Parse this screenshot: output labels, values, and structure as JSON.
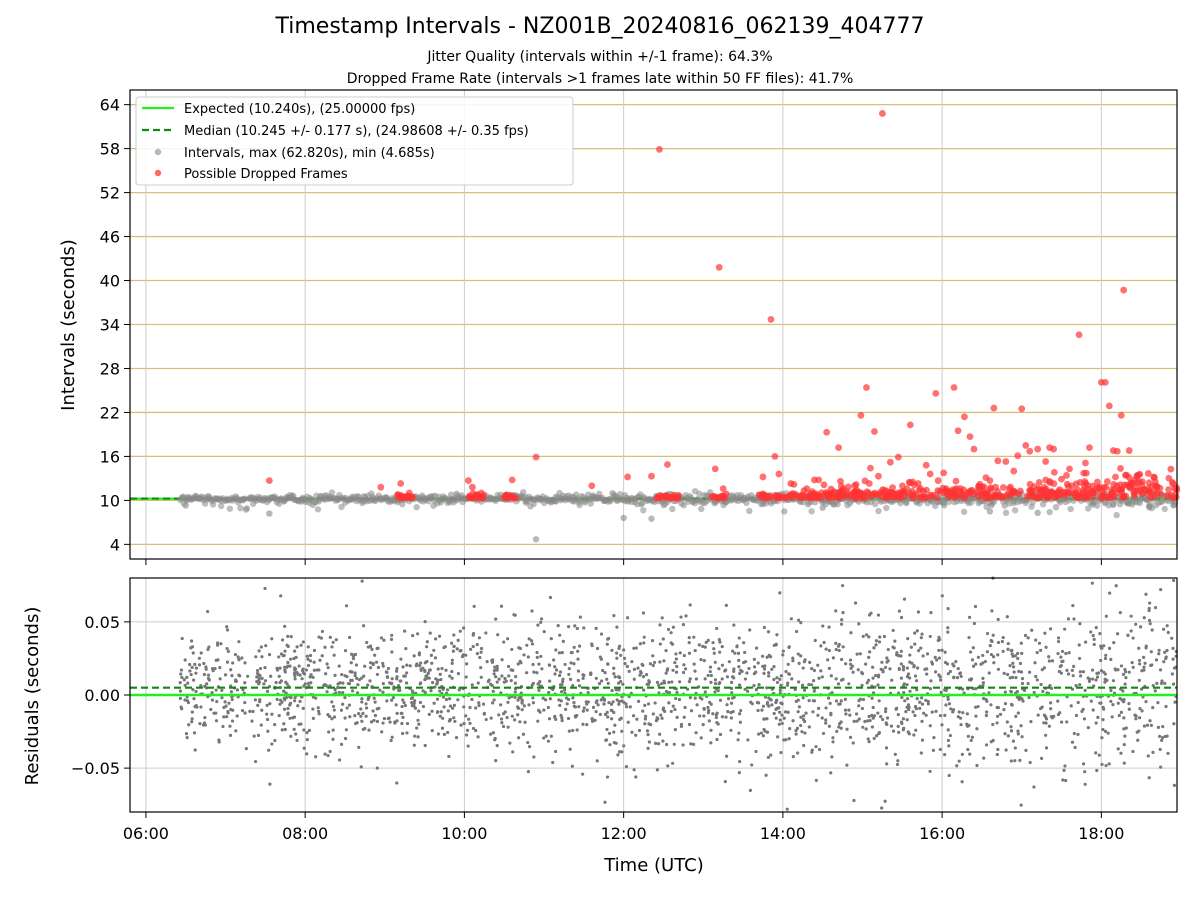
{
  "title": "Timestamp Intervals - NZ001B_20240816_062139_404777",
  "subtitle_lines": [
    "Jitter Quality (intervals within +/-1 frame): 64.3%",
    "Dropped Frame Rate (intervals >1 frames late within 50 FF files): 41.7%"
  ],
  "colors": {
    "expected": "#22ee22",
    "median": "#118811",
    "intervals": "#888888",
    "dropped": "#ff3333",
    "grid_h_top": "#d8c07a",
    "grid": "#cccccc",
    "residuals": "#777777"
  },
  "chart_data": [
    {
      "type": "scatter",
      "panel": "top",
      "xlabel": "",
      "ylabel": "Intervals (seconds)",
      "xlim_hours": [
        5.8,
        18.95
      ],
      "ylim": [
        2,
        66
      ],
      "yticks": [
        4,
        10,
        16,
        22,
        28,
        34,
        40,
        46,
        52,
        58,
        64
      ],
      "grid": "horizontal lines at y ticks, vertical lines at x ticks",
      "legend_position": "upper-left",
      "legend": [
        "Expected (10.240s), (25.00000 fps)",
        "Median (10.245 +/- 0.177 s), (24.98608 +/- 0.35 fps)",
        "Intervals, max (62.820s), min (4.685s)",
        "Possible Dropped Frames"
      ],
      "series": [
        {
          "name": "Expected (10.240s), (25.00000 fps)",
          "kind": "hline",
          "y": 10.24
        },
        {
          "name": "Median (10.245 +/- 0.177 s), (24.98608 +/- 0.35 fps)",
          "kind": "hline-dashed",
          "y": 10.245
        },
        {
          "name": "Intervals, max (62.820s), min (4.685s)",
          "kind": "scatter",
          "x_range_hours": [
            6.43,
            18.95
          ],
          "count": 900,
          "typical_y": 10.24,
          "spread_near_start": 0.35,
          "spread_near_end": 0.8,
          "notable_points": [
            [
              7.55,
              8.2
            ],
            [
              10.9,
              4.69
            ],
            [
              12.0,
              7.6
            ],
            [
              12.35,
              7.5
            ],
            [
              9.9,
              10.9
            ],
            [
              14.5,
              9.0
            ],
            [
              16.6,
              8.5
            ],
            [
              17.2,
              8.3
            ],
            [
              18.6,
              9.2
            ],
            [
              6.5,
              9.3
            ]
          ]
        },
        {
          "name": "Possible Dropped Frames",
          "kind": "scatter",
          "clusters_hours": [
            [
              9.15,
              9.35,
              20
            ],
            [
              10.05,
              10.25,
              20
            ],
            [
              10.5,
              10.65,
              16
            ],
            [
              12.4,
              12.7,
              20
            ],
            [
              13.1,
              13.3,
              14
            ],
            [
              13.7,
              14.0,
              20
            ]
          ],
          "dense_region_hours": [
            14.0,
            18.95,
            420
          ],
          "points": [
            [
              7.55,
              12.7
            ],
            [
              8.95,
              11.8
            ],
            [
              9.2,
              12.3
            ],
            [
              10.05,
              12.7
            ],
            [
              10.1,
              11.8
            ],
            [
              10.6,
              12.8
            ],
            [
              10.9,
              15.9
            ],
            [
              11.6,
              12.0
            ],
            [
              12.05,
              13.2
            ],
            [
              12.35,
              13.3
            ],
            [
              12.45,
              57.9
            ],
            [
              12.55,
              14.9
            ],
            [
              13.15,
              14.3
            ],
            [
              13.2,
              41.8
            ],
            [
              13.25,
              11.6
            ],
            [
              13.75,
              13.2
            ],
            [
              13.85,
              34.7
            ],
            [
              13.9,
              16.0
            ],
            [
              13.95,
              13.6
            ],
            [
              14.1,
              12.3
            ],
            [
              14.3,
              11.6
            ],
            [
              14.45,
              12.8
            ],
            [
              14.55,
              19.3
            ],
            [
              14.7,
              17.2
            ],
            [
              14.9,
              12.0
            ],
            [
              14.98,
              21.6
            ],
            [
              15.05,
              25.4
            ],
            [
              15.1,
              14.4
            ],
            [
              15.15,
              19.4
            ],
            [
              15.2,
              13.3
            ],
            [
              15.25,
              62.8
            ],
            [
              15.3,
              11.3
            ],
            [
              15.35,
              15.2
            ],
            [
              15.45,
              15.9
            ],
            [
              15.6,
              20.3
            ],
            [
              15.7,
              12.3
            ],
            [
              15.8,
              14.8
            ],
            [
              15.85,
              13.6
            ],
            [
              15.92,
              24.6
            ],
            [
              15.95,
              12.7
            ],
            [
              16.05,
              11.6
            ],
            [
              16.15,
              25.4
            ],
            [
              16.2,
              19.5
            ],
            [
              16.28,
              21.4
            ],
            [
              16.35,
              18.7
            ],
            [
              16.4,
              17.0
            ],
            [
              16.55,
              13.1
            ],
            [
              16.6,
              12.7
            ],
            [
              16.65,
              22.6
            ],
            [
              16.7,
              15.4
            ],
            [
              16.8,
              15.3
            ],
            [
              16.9,
              14.0
            ],
            [
              16.95,
              16.1
            ],
            [
              17.0,
              22.5
            ],
            [
              17.05,
              17.5
            ],
            [
              17.1,
              16.7
            ],
            [
              17.2,
              17.0
            ],
            [
              17.3,
              15.3
            ],
            [
              17.35,
              17.2
            ],
            [
              17.4,
              17.0
            ],
            [
              17.5,
              12.9
            ],
            [
              17.6,
              14.3
            ],
            [
              17.72,
              32.6
            ],
            [
              17.8,
              15.1
            ],
            [
              17.85,
              17.2
            ],
            [
              17.95,
              12.5
            ],
            [
              18.0,
              26.1
            ],
            [
              18.05,
              26.1
            ],
            [
              18.1,
              22.9
            ],
            [
              18.15,
              16.8
            ],
            [
              18.2,
              16.7
            ],
            [
              18.25,
              21.6
            ],
            [
              18.28,
              38.7
            ],
            [
              18.35,
              16.8
            ],
            [
              18.45,
              13.4
            ],
            [
              18.6,
              12.4
            ],
            [
              18.7,
              11.8
            ]
          ]
        }
      ]
    },
    {
      "type": "scatter",
      "panel": "bottom",
      "xlabel": "Time (UTC)",
      "ylabel": "Residuals (seconds)",
      "xlim_hours": [
        5.8,
        18.95
      ],
      "ylim": [
        -0.08,
        0.08
      ],
      "yticks": [
        -0.05,
        0.0,
        0.05
      ],
      "ytick_labels": [
        "−0.05",
        "0.00",
        "0.05"
      ],
      "xticks_hours": [
        6,
        8,
        10,
        12,
        14,
        16,
        18
      ],
      "xtick_labels": [
        "06:00",
        "08:00",
        "10:00",
        "12:00",
        "14:00",
        "16:00",
        "18:00"
      ],
      "grid": "horizontal and vertical grid lines",
      "series": [
        {
          "name": "Expected",
          "kind": "hline",
          "y": 0.0
        },
        {
          "name": "Median",
          "kind": "hline-dashed",
          "y": 0.005
        },
        {
          "name": "Residuals",
          "kind": "scatter",
          "x_range_hours": [
            6.43,
            18.95
          ],
          "count": 2300,
          "center": 0.005,
          "spread_near_start": 0.018,
          "spread_near_end": 0.032
        }
      ]
    }
  ]
}
